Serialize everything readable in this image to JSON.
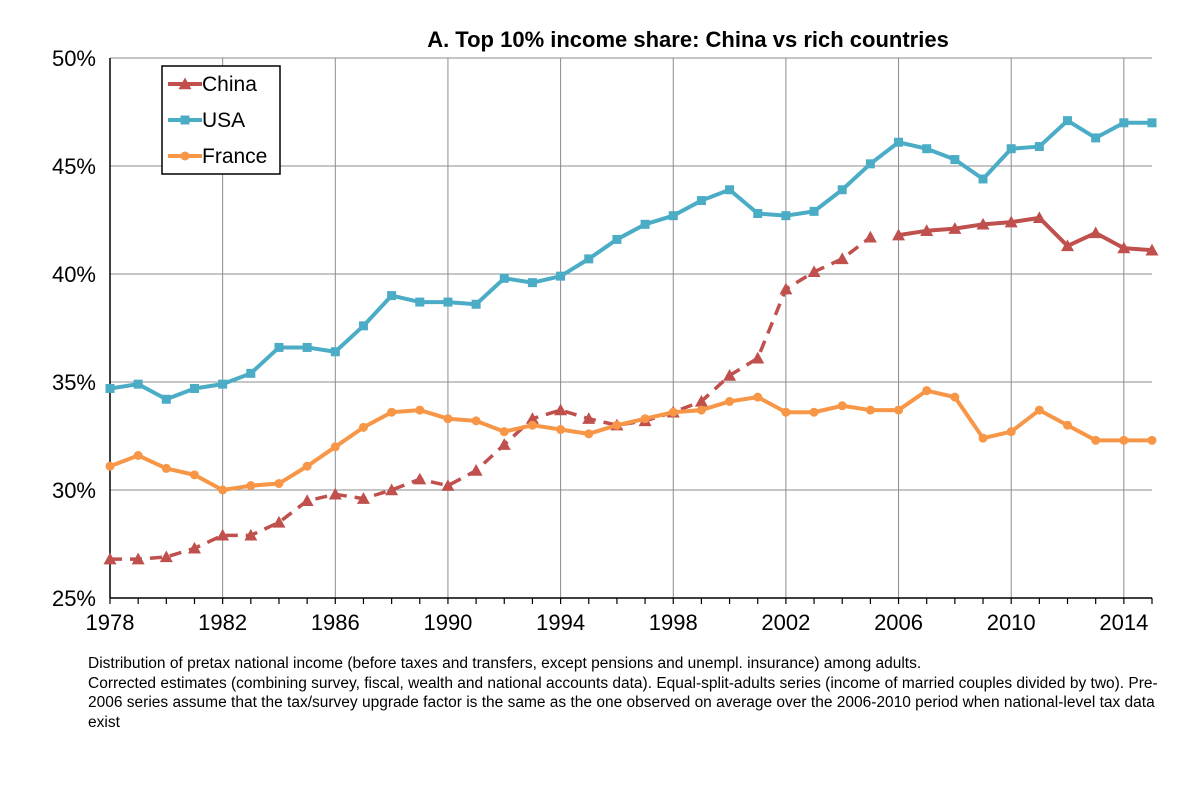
{
  "chart_data": {
    "type": "line",
    "title": "A. Top 10% income share: China vs rich countries",
    "xlabel": "",
    "ylabel": "",
    "xlim": [
      1978,
      2015
    ],
    "ylim": [
      25,
      50
    ],
    "x_ticks": [
      1978,
      1982,
      1986,
      1990,
      1994,
      1998,
      2002,
      2006,
      2010,
      2014
    ],
    "x_tick_labels": [
      "1978",
      "1982",
      "1986",
      "1990",
      "1994",
      "1998",
      "2002",
      "2006",
      "2010",
      "2014"
    ],
    "y_ticks": [
      25,
      30,
      35,
      40,
      45,
      50
    ],
    "y_tick_labels": [
      "25%",
      "30%",
      "35%",
      "40%",
      "45%",
      "50%"
    ],
    "grid": true,
    "legend_position": "top-left",
    "series": [
      {
        "name": "China",
        "color": "#C0504D",
        "marker": "triangle",
        "style": "dashed before 2006, solid from 2006",
        "x": [
          1978,
          1979,
          1980,
          1981,
          1982,
          1983,
          1984,
          1985,
          1986,
          1987,
          1988,
          1989,
          1990,
          1991,
          1992,
          1993,
          1994,
          1995,
          1996,
          1997,
          1998,
          1999,
          2000,
          2001,
          2002,
          2003,
          2004,
          2005,
          2006,
          2007,
          2008,
          2009,
          2010,
          2011,
          2012,
          2013,
          2014,
          2015
        ],
        "values": [
          26.8,
          26.8,
          26.9,
          27.3,
          27.9,
          27.9,
          28.5,
          29.5,
          29.8,
          29.6,
          30.0,
          30.5,
          30.2,
          30.9,
          32.1,
          33.3,
          33.7,
          33.3,
          33.0,
          33.2,
          33.6,
          34.1,
          35.3,
          36.1,
          39.3,
          40.1,
          40.7,
          41.7,
          41.8,
          42.0,
          42.1,
          42.3,
          42.4,
          42.6,
          41.3,
          41.9,
          41.2,
          41.1
        ]
      },
      {
        "name": "USA",
        "color": "#4BACC6",
        "marker": "square",
        "style": "solid",
        "x": [
          1978,
          1979,
          1980,
          1981,
          1982,
          1983,
          1984,
          1985,
          1986,
          1987,
          1988,
          1989,
          1990,
          1991,
          1992,
          1993,
          1994,
          1995,
          1996,
          1997,
          1998,
          1999,
          2000,
          2001,
          2002,
          2003,
          2004,
          2005,
          2006,
          2007,
          2008,
          2009,
          2010,
          2011,
          2012,
          2013,
          2014,
          2015
        ],
        "values": [
          34.7,
          34.9,
          34.2,
          34.7,
          34.9,
          35.4,
          36.6,
          36.6,
          36.4,
          37.6,
          39.0,
          38.7,
          38.7,
          38.6,
          39.8,
          39.6,
          39.9,
          40.7,
          41.6,
          42.3,
          42.7,
          43.4,
          43.9,
          42.8,
          42.7,
          42.9,
          43.9,
          45.1,
          46.1,
          45.8,
          45.3,
          44.4,
          45.8,
          45.9,
          47.1,
          46.3,
          47.0,
          47.0
        ]
      },
      {
        "name": "France",
        "color": "#F79646",
        "marker": "circle",
        "style": "solid",
        "x": [
          1978,
          1979,
          1980,
          1981,
          1982,
          1983,
          1984,
          1985,
          1986,
          1987,
          1988,
          1989,
          1990,
          1991,
          1992,
          1993,
          1994,
          1995,
          1996,
          1997,
          1998,
          1999,
          2000,
          2001,
          2002,
          2003,
          2004,
          2005,
          2006,
          2007,
          2008,
          2009,
          2010,
          2011,
          2012,
          2013,
          2014,
          2015
        ],
        "values": [
          31.1,
          31.6,
          31.0,
          30.7,
          30.0,
          30.2,
          30.3,
          31.1,
          32.0,
          32.9,
          33.6,
          33.7,
          33.3,
          33.2,
          32.7,
          33.0,
          32.8,
          32.6,
          33.0,
          33.3,
          33.6,
          33.7,
          34.1,
          34.3,
          33.6,
          33.6,
          33.9,
          33.7,
          33.7,
          34.6,
          34.3,
          32.4,
          32.7,
          33.7,
          33.0,
          32.3,
          32.3,
          32.3
        ]
      }
    ]
  },
  "notes": [
    "Distribution of pretax national income (before taxes and transfers, except pensions and unempl. insurance) among adults.",
    "Corrected estimates (combining survey, fiscal, wealth and national accounts data). Equal-split-adults series (income of married couples divided by two). Pre-2006 series assume that the tax/survey upgrade factor is the same as the one observed on average over the 2006-2010 period when national-level tax data exist"
  ]
}
